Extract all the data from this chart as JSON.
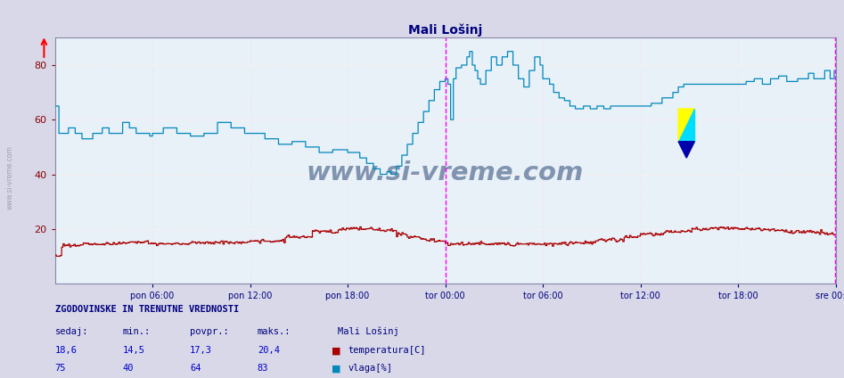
{
  "title": "Mali Lošinj",
  "bg_color": "#d8d8e8",
  "plot_bg_color": "#e8f0f8",
  "grid_color_white": "#ffffff",
  "grid_color_pink": "#e8b0b0",
  "temp_color": "#aa0000",
  "humid_color": "#0088bb",
  "vline_magenta": "#ff00ff",
  "vline_blue": "#8080ff",
  "xlabel_color": "#000080",
  "ylabel_color": "#880000",
  "title_color": "#000080",
  "watermark_text": "www.si-vreme.com",
  "watermark_color": "#1a3a6a",
  "stats_title": "ZGODOVINSKE IN TRENUTNE VREDNOSTI",
  "stats_headers": [
    "sedaj:",
    "min.:",
    "povpr.:",
    "maks.:"
  ],
  "stats_location": "Mali Lošinj",
  "temp_stats": [
    "18,6",
    "14,5",
    "17,3",
    "20,4"
  ],
  "humid_stats": [
    "75",
    "40",
    "64",
    "83"
  ],
  "temp_label": "temperatura[C]",
  "humid_label": "vlaga[%]",
  "xlabels": [
    "pon 06:00",
    "pon 12:00",
    "pon 18:00",
    "tor 00:00",
    "tor 06:00",
    "tor 12:00",
    "tor 18:00",
    "sre 00:00"
  ],
  "ylim": [
    0,
    90
  ],
  "yticks": [
    20,
    40,
    60,
    80
  ],
  "n_points": 576,
  "figsize": [
    9.47,
    4.24
  ],
  "dpi": 100
}
